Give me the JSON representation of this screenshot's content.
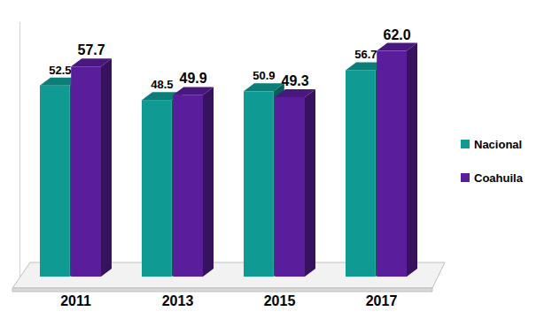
{
  "chart_data": {
    "type": "bar",
    "categories": [
      "2011",
      "2013",
      "2015",
      "2017"
    ],
    "series": [
      {
        "name": "Nacional",
        "color": "#0f9b93",
        "values": [
          52.5,
          48.5,
          50.9,
          56.7
        ]
      },
      {
        "name": "Coahuila",
        "color": "#5a1e9c",
        "values": [
          57.7,
          49.9,
          49.3,
          62
        ],
        "value_labels": [
          "57.7",
          "49.9",
          "49.3",
          "62.0"
        ]
      }
    ],
    "ylim": [
      0,
      70
    ],
    "yticks": [],
    "grid": false,
    "legend": "right",
    "data_labels": true,
    "tick_labels": "x"
  }
}
